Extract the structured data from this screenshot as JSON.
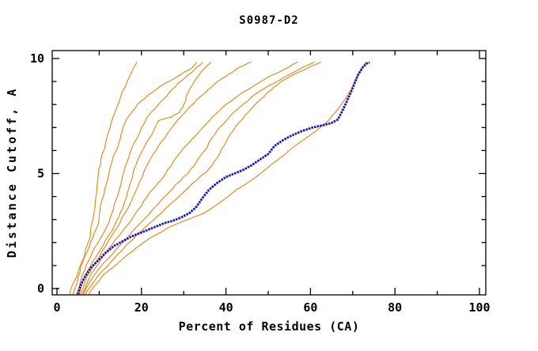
{
  "title": "S0987-D2",
  "colors": {
    "background": "#ffffff",
    "axis": "#000000",
    "text": "#000000",
    "orange_line": "#e8820e",
    "blue_line": "#1414c8"
  },
  "chart_data": {
    "type": "line",
    "title": "S0987-D2",
    "xlabel": "Percent of Residues (CA)",
    "ylabel": "Distance Cutoff, A",
    "xlim": [
      0,
      100
    ],
    "ylim": [
      0,
      10
    ],
    "grid": false,
    "legend": "none",
    "x_major_ticks": [
      0,
      20,
      40,
      60,
      80,
      100
    ],
    "x_minor_ticks": [
      10,
      30,
      50,
      70,
      90
    ],
    "y_major_ticks": [
      0,
      5,
      10
    ],
    "y_minor_ticks": [
      1,
      2,
      3,
      4,
      6,
      7,
      8,
      9
    ],
    "series": [
      {
        "name": "orange-line-1",
        "color_role": "orange_line",
        "width": 1.1,
        "jitter": true,
        "points": [
          [
            3,
            -0.25
          ],
          [
            4.2,
            0.35
          ],
          [
            5.3,
            0.9
          ],
          [
            6.4,
            1.35
          ],
          [
            7,
            1.8
          ],
          [
            7.9,
            2.3
          ],
          [
            8.3,
            2.85
          ],
          [
            9,
            3.5
          ],
          [
            9.4,
            4.2
          ],
          [
            9.8,
            5
          ],
          [
            10.4,
            5.6
          ],
          [
            11.5,
            6.3
          ],
          [
            12.6,
            7
          ],
          [
            13.6,
            7.6
          ],
          [
            15,
            8.3
          ],
          [
            16.6,
            9
          ],
          [
            18,
            9.55
          ],
          [
            18.8,
            9.85
          ]
        ]
      },
      {
        "name": "orange-line-2",
        "color_role": "orange_line",
        "width": 1.1,
        "jitter": true,
        "points": [
          [
            3.8,
            -0.25
          ],
          [
            5,
            0.5
          ],
          [
            6,
            1.1
          ],
          [
            7.4,
            1.7
          ],
          [
            8.5,
            2.2
          ],
          [
            9.9,
            2.9
          ],
          [
            10.3,
            3.6
          ],
          [
            11.3,
            4.3
          ],
          [
            12.3,
            5
          ],
          [
            13,
            5.5
          ],
          [
            14,
            6
          ],
          [
            15,
            6.5
          ],
          [
            15.6,
            7
          ],
          [
            17,
            7.5
          ],
          [
            19,
            8
          ],
          [
            21.5,
            8.4
          ],
          [
            24.5,
            8.8
          ],
          [
            27.5,
            9.1
          ],
          [
            30,
            9.4
          ],
          [
            32,
            9.6
          ],
          [
            33,
            9.85
          ]
        ]
      },
      {
        "name": "orange-line-3",
        "color_role": "orange_line",
        "width": 1.1,
        "jitter": true,
        "points": [
          [
            4.6,
            -0.25
          ],
          [
            6,
            0.6
          ],
          [
            7.5,
            1.2
          ],
          [
            9,
            1.8
          ],
          [
            11,
            2.4
          ],
          [
            12.5,
            3
          ],
          [
            13.5,
            3.6
          ],
          [
            14.6,
            4.2
          ],
          [
            15.7,
            5
          ],
          [
            17,
            5.7
          ],
          [
            18.5,
            6.4
          ],
          [
            20,
            7
          ],
          [
            22,
            7.6
          ],
          [
            24.5,
            8.1
          ],
          [
            26.5,
            8.5
          ],
          [
            28.5,
            8.9
          ],
          [
            30.5,
            9.2
          ],
          [
            32.5,
            9.5
          ],
          [
            34.5,
            9.85
          ]
        ]
      },
      {
        "name": "orange-line-4",
        "color_role": "orange_line",
        "width": 1.1,
        "jitter": true,
        "points": [
          [
            5.2,
            -0.25
          ],
          [
            6.5,
            0.5
          ],
          [
            8,
            1
          ],
          [
            9.6,
            1.5
          ],
          [
            11.5,
            2.1
          ],
          [
            13.5,
            2.7
          ],
          [
            15,
            3.3
          ],
          [
            16.5,
            4
          ],
          [
            17.2,
            4.5
          ],
          [
            18,
            5
          ],
          [
            19,
            5.55
          ],
          [
            20.5,
            6.1
          ],
          [
            22.5,
            6.7
          ],
          [
            24,
            7.3
          ],
          [
            27,
            7.45
          ],
          [
            29,
            7.65
          ],
          [
            30,
            8
          ],
          [
            31,
            8.5
          ],
          [
            32.5,
            9
          ],
          [
            34,
            9.4
          ],
          [
            36.5,
            9.85
          ]
        ]
      },
      {
        "name": "orange-line-5",
        "color_role": "orange_line",
        "width": 1.1,
        "jitter": true,
        "points": [
          [
            5.6,
            -0.25
          ],
          [
            7,
            0.5
          ],
          [
            9,
            1.1
          ],
          [
            11,
            1.7
          ],
          [
            13,
            2.3
          ],
          [
            15,
            2.9
          ],
          [
            16.5,
            3.4
          ],
          [
            18,
            4
          ],
          [
            19.3,
            4.5
          ],
          [
            20.4,
            5
          ],
          [
            22,
            5.6
          ],
          [
            24,
            6.2
          ],
          [
            26,
            6.7
          ],
          [
            28,
            7.2
          ],
          [
            30.5,
            7.7
          ],
          [
            33,
            8.2
          ],
          [
            35.5,
            8.6
          ],
          [
            38,
            9
          ],
          [
            40.5,
            9.3
          ],
          [
            43,
            9.6
          ],
          [
            46,
            9.85
          ]
        ]
      },
      {
        "name": "orange-line-6",
        "color_role": "orange_line",
        "width": 1.1,
        "jitter": true,
        "points": [
          [
            6,
            -0.25
          ],
          [
            8,
            0.6
          ],
          [
            10.5,
            1.3
          ],
          [
            13,
            1.9
          ],
          [
            15.5,
            2.5
          ],
          [
            18,
            3.1
          ],
          [
            20,
            3.6
          ],
          [
            22,
            4.2
          ],
          [
            24,
            4.6
          ],
          [
            25.7,
            5
          ],
          [
            27.5,
            5.5
          ],
          [
            29.5,
            6
          ],
          [
            32,
            6.5
          ],
          [
            34.5,
            7
          ],
          [
            37,
            7.5
          ],
          [
            40,
            8
          ],
          [
            43,
            8.4
          ],
          [
            46.5,
            8.8
          ],
          [
            50,
            9.2
          ],
          [
            53.5,
            9.5
          ],
          [
            57,
            9.85
          ]
        ]
      },
      {
        "name": "orange-line-7",
        "color_role": "orange_line",
        "width": 1.1,
        "jitter": true,
        "points": [
          [
            6.3,
            -0.25
          ],
          [
            8.5,
            0.5
          ],
          [
            11,
            1.1
          ],
          [
            14,
            1.7
          ],
          [
            17,
            2.3
          ],
          [
            20,
            2.9
          ],
          [
            23,
            3.5
          ],
          [
            25.5,
            4
          ],
          [
            28,
            4.5
          ],
          [
            31,
            5
          ],
          [
            33,
            5.5
          ],
          [
            35,
            6
          ],
          [
            36.5,
            6.5
          ],
          [
            38.5,
            7
          ],
          [
            41,
            7.5
          ],
          [
            44,
            8
          ],
          [
            47,
            8.45
          ],
          [
            50,
            8.8
          ],
          [
            53.5,
            9.15
          ],
          [
            57,
            9.5
          ],
          [
            61,
            9.85
          ]
        ]
      },
      {
        "name": "orange-line-8",
        "color_role": "orange_line",
        "width": 1.1,
        "jitter": true,
        "points": [
          [
            6.7,
            -0.25
          ],
          [
            9.5,
            0.5
          ],
          [
            13,
            1.2
          ],
          [
            16.5,
            1.9
          ],
          [
            20,
            2.5
          ],
          [
            23.5,
            3.1
          ],
          [
            27,
            3.7
          ],
          [
            30,
            4.2
          ],
          [
            33,
            4.7
          ],
          [
            36,
            5.2
          ],
          [
            38,
            5.7
          ],
          [
            39.5,
            6.2
          ],
          [
            41,
            6.7
          ],
          [
            43,
            7.2
          ],
          [
            45.5,
            7.7
          ],
          [
            48,
            8.2
          ],
          [
            50.5,
            8.6
          ],
          [
            53,
            9
          ],
          [
            56,
            9.3
          ],
          [
            59,
            9.55
          ],
          [
            62.5,
            9.85
          ]
        ]
      },
      {
        "name": "orange-line-9",
        "color_role": "orange_line",
        "width": 1.1,
        "jitter": true,
        "points": [
          [
            7.5,
            -0.25
          ],
          [
            11,
            0.6
          ],
          [
            15,
            1.2
          ],
          [
            19,
            1.8
          ],
          [
            23,
            2.3
          ],
          [
            27,
            2.7
          ],
          [
            31,
            3
          ],
          [
            35,
            3.3
          ],
          [
            39,
            3.8
          ],
          [
            42.5,
            4.3
          ],
          [
            46,
            4.7
          ],
          [
            49.5,
            5.2
          ],
          [
            53,
            5.7
          ],
          [
            56,
            6.15
          ],
          [
            59,
            6.55
          ],
          [
            62,
            6.95
          ],
          [
            64.5,
            7.35
          ],
          [
            66.5,
            7.8
          ],
          [
            68.5,
            8.3
          ],
          [
            70,
            8.8
          ],
          [
            71.3,
            9.3
          ],
          [
            72.4,
            9.6
          ],
          [
            73.2,
            9.85
          ]
        ]
      },
      {
        "name": "blue-line",
        "color_role": "blue_line",
        "width": 2.8,
        "jitter": false,
        "dashed": true,
        "points": [
          [
            5,
            -0.25
          ],
          [
            5.6,
            0.15
          ],
          [
            6.6,
            0.5
          ],
          [
            8,
            0.9
          ],
          [
            9.6,
            1.2
          ],
          [
            11.5,
            1.55
          ],
          [
            13.5,
            1.85
          ],
          [
            15.5,
            2.05
          ],
          [
            17.5,
            2.25
          ],
          [
            19.5,
            2.4
          ],
          [
            21.5,
            2.55
          ],
          [
            23.5,
            2.7
          ],
          [
            25.5,
            2.85
          ],
          [
            27.5,
            2.95
          ],
          [
            29.5,
            3.1
          ],
          [
            31.5,
            3.3
          ],
          [
            33,
            3.55
          ],
          [
            34.5,
            3.95
          ],
          [
            36,
            4.3
          ],
          [
            38,
            4.6
          ],
          [
            40,
            4.85
          ],
          [
            42,
            5
          ],
          [
            44,
            5.15
          ],
          [
            46,
            5.35
          ],
          [
            48,
            5.6
          ],
          [
            50,
            5.85
          ],
          [
            51.5,
            6.2
          ],
          [
            53.5,
            6.45
          ],
          [
            55.5,
            6.65
          ],
          [
            58,
            6.85
          ],
          [
            60.5,
            7
          ],
          [
            63,
            7.1
          ],
          [
            65,
            7.2
          ],
          [
            66.5,
            7.35
          ],
          [
            67.5,
            7.7
          ],
          [
            68.5,
            8.1
          ],
          [
            69.5,
            8.5
          ],
          [
            70.5,
            8.95
          ],
          [
            71.3,
            9.3
          ],
          [
            72.3,
            9.6
          ],
          [
            73.3,
            9.78
          ],
          [
            74,
            9.82
          ]
        ]
      }
    ]
  }
}
